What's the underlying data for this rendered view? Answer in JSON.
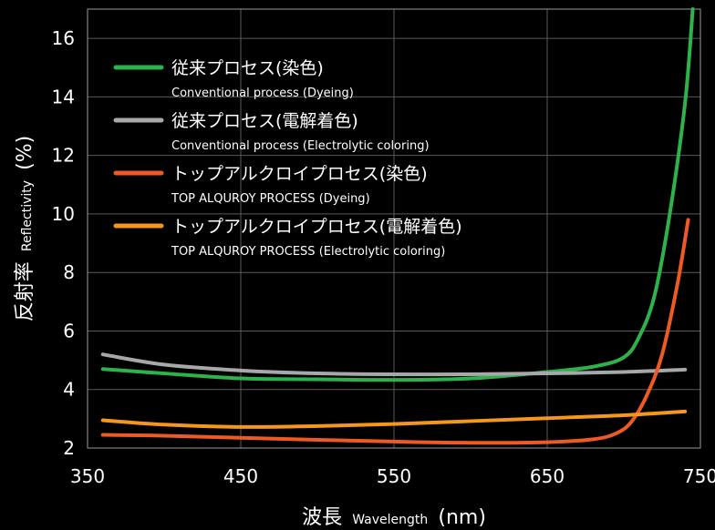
{
  "chart_data": {
    "type": "line",
    "title": "",
    "xlabel_jp": "波長",
    "xlabel_en": "Wavelength",
    "xlabel_unit": "(nm)",
    "ylabel_jp": "反射率",
    "ylabel_en": "Reflectivity",
    "ylabel_unit": "(%)",
    "xlim": [
      350,
      750
    ],
    "ylim": [
      2,
      17
    ],
    "xticks": [
      350,
      450,
      550,
      650,
      750
    ],
    "yticks": [
      2,
      4,
      6,
      8,
      10,
      12,
      14,
      16
    ],
    "grid": true,
    "legend_position": "top-left",
    "series": [
      {
        "name": "従来プロセス(染色)",
        "name_en": "Conventional process (Dyeing)",
        "color": "#2db34a",
        "points": [
          [
            360,
            4.7
          ],
          [
            400,
            4.55
          ],
          [
            450,
            4.38
          ],
          [
            500,
            4.35
          ],
          [
            550,
            4.33
          ],
          [
            600,
            4.38
          ],
          [
            650,
            4.6
          ],
          [
            680,
            4.78
          ],
          [
            700,
            5.1
          ],
          [
            710,
            5.8
          ],
          [
            720,
            7.2
          ],
          [
            730,
            10.0
          ],
          [
            740,
            13.8
          ],
          [
            745,
            17.0
          ]
        ]
      },
      {
        "name": "従来プロセス(電解着色)",
        "name_en": "Conventional process (Electrolytic coloring)",
        "color": "#a7a8aa",
        "points": [
          [
            360,
            5.2
          ],
          [
            400,
            4.85
          ],
          [
            450,
            4.65
          ],
          [
            500,
            4.55
          ],
          [
            550,
            4.52
          ],
          [
            600,
            4.52
          ],
          [
            650,
            4.55
          ],
          [
            700,
            4.6
          ],
          [
            740,
            4.68
          ]
        ]
      },
      {
        "name": "トップアルクロイプロセス(染色)",
        "name_en": "TOP ALQUROY PROCESS (Dyeing)",
        "color": "#ee5a24",
        "points": [
          [
            360,
            2.45
          ],
          [
            400,
            2.42
          ],
          [
            450,
            2.35
          ],
          [
            500,
            2.28
          ],
          [
            550,
            2.22
          ],
          [
            600,
            2.18
          ],
          [
            650,
            2.2
          ],
          [
            680,
            2.3
          ],
          [
            695,
            2.5
          ],
          [
            705,
            2.9
          ],
          [
            715,
            3.8
          ],
          [
            725,
            5.2
          ],
          [
            735,
            7.6
          ],
          [
            742,
            9.8
          ]
        ]
      },
      {
        "name": "トップアルクロイプロセス(電解着色)",
        "name_en": "TOP ALQUROY PROCESS (Electrolytic coloring)",
        "color": "#f5961d",
        "points": [
          [
            360,
            2.95
          ],
          [
            400,
            2.8
          ],
          [
            450,
            2.72
          ],
          [
            500,
            2.75
          ],
          [
            550,
            2.82
          ],
          [
            600,
            2.92
          ],
          [
            650,
            3.02
          ],
          [
            700,
            3.12
          ],
          [
            740,
            3.25
          ]
        ]
      }
    ]
  }
}
